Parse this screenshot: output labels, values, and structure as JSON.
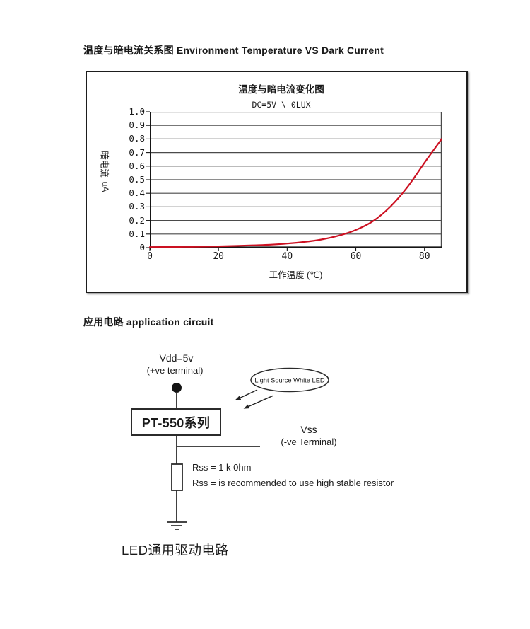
{
  "sections": {
    "chart_title": "温度与暗电流关系图 Environment Temperature VS Dark Current",
    "circuit_title": "应用电路  application circuit"
  },
  "chart_data": {
    "type": "line",
    "title": "温度与暗电流变化图",
    "subtitle": "DC=5V \\ 0LUX",
    "xlabel": "工作温度 (℃)",
    "ylabel_cn": "暗电流",
    "ylabel_unit": "uA",
    "xlim": [
      0,
      85
    ],
    "ylim": [
      0,
      1.0
    ],
    "x_ticks": [
      0,
      20,
      40,
      60,
      80
    ],
    "y_ticks": [
      "1.0",
      "0.9",
      "0.8",
      "0.7",
      "0.6",
      "0.5",
      "0.4",
      "0.3",
      "0.2",
      "0.1",
      "0"
    ],
    "grid": "horizontal",
    "legend": "none",
    "line_color": "#cc1122",
    "series": [
      {
        "name": "暗电流 dark current (uA)",
        "x": [
          0,
          5,
          10,
          15,
          20,
          25,
          30,
          35,
          40,
          45,
          50,
          55,
          60,
          65,
          70,
          75,
          80,
          85
        ],
        "y": [
          0.004,
          0.005,
          0.006,
          0.008,
          0.01,
          0.013,
          0.017,
          0.022,
          0.03,
          0.042,
          0.06,
          0.088,
          0.13,
          0.195,
          0.3,
          0.445,
          0.625,
          0.8
        ]
      }
    ]
  },
  "circuit": {
    "vdd_label": "Vdd=5v",
    "vdd_sub": "(+ve terminal)",
    "box_label": "PT-550系列",
    "led_label": "Light Source White LED",
    "vss_label": "Vss",
    "vss_sub": "(-ve Terminal)",
    "rss_line1": "Rss = 1 k 0hm",
    "rss_line2": "Rss = is recommended to use high stable resistor",
    "caption": "LED通用驱动电路"
  }
}
